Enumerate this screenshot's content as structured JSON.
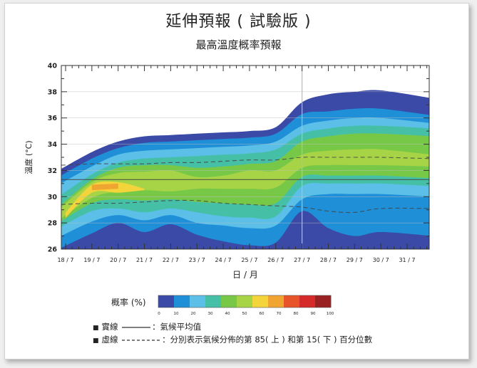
{
  "page": {
    "title": "延伸預報 ( 試驗版 )",
    "subtitle": "最高溫度概率預報"
  },
  "chart_data": {
    "type": "area",
    "title": "最高溫度概率預報",
    "xlabel": "日 / 月",
    "ylabel": "溫度 (°C)",
    "ylim": [
      26,
      40
    ],
    "yticks": [
      26,
      28,
      30,
      32,
      34,
      36,
      38,
      40
    ],
    "x": [
      "18/7",
      "19/7",
      "20/7",
      "21/7",
      "22/7",
      "23/7",
      "24/7",
      "25/7",
      "26/7",
      "27/7",
      "28/7",
      "29/7",
      "30/7",
      "31/7"
    ],
    "forecast_start": "27/7",
    "climatology": {
      "mean": [
        31.3,
        31.3,
        31.3,
        31.3,
        31.3,
        31.3,
        31.3,
        31.3,
        31.3,
        31.3,
        31.3,
        31.3,
        31.3,
        31.3
      ],
      "p85": [
        32.4,
        32.5,
        32.5,
        32.5,
        32.6,
        32.6,
        32.7,
        32.8,
        32.8,
        33.0,
        33.0,
        33.0,
        33.0,
        32.9
      ],
      "p15": [
        29.4,
        29.5,
        29.5,
        29.6,
        29.7,
        29.7,
        29.5,
        29.4,
        29.3,
        29.2,
        28.9,
        28.8,
        29.1,
        29.1
      ]
    },
    "probability_bands": [
      {
        "level": 0,
        "upper": [
          32.0,
          33.4,
          34.2,
          34.6,
          34.7,
          34.8,
          34.9,
          35.0,
          35.3,
          37.2,
          37.8,
          38.0,
          38.1,
          37.5
        ],
        "lower": [
          25.6,
          25.8,
          25.9,
          25.8,
          25.6,
          25.5,
          25.5,
          25.7,
          25.6,
          25.9,
          26.0,
          26.0,
          26.0,
          26.0
        ]
      },
      {
        "level": 10,
        "upper": [
          31.5,
          32.9,
          33.7,
          34.1,
          34.2,
          34.3,
          34.4,
          34.5,
          34.8,
          36.3,
          36.5,
          36.7,
          36.7,
          36.2
        ],
        "lower": [
          26.0,
          27.2,
          28.0,
          27.3,
          27.9,
          27.1,
          26.6,
          26.3,
          26.5,
          28.9,
          27.6,
          27.0,
          27.3,
          27.0
        ]
      },
      {
        "level": 20,
        "upper": [
          30.9,
          32.3,
          33.2,
          33.5,
          33.6,
          33.7,
          33.8,
          33.9,
          34.2,
          35.4,
          35.8,
          36.0,
          36.0,
          35.6
        ],
        "lower": [
          26.9,
          28.1,
          28.6,
          28.2,
          28.6,
          28.0,
          27.8,
          27.6,
          27.8,
          29.8,
          30.2,
          30.2,
          30.2,
          30.0
        ]
      },
      {
        "level": 30,
        "upper": [
          30.0,
          31.7,
          32.6,
          32.9,
          33.0,
          33.1,
          33.2,
          33.3,
          33.6,
          34.8,
          35.2,
          35.4,
          35.4,
          35.2
        ],
        "lower": [
          27.6,
          28.9,
          29.1,
          28.8,
          29.1,
          28.8,
          28.5,
          28.4,
          28.5,
          30.8,
          31.0,
          31.0,
          31.0,
          30.8
        ]
      },
      {
        "level": 40,
        "upper": [
          29.2,
          31.3,
          32.2,
          32.4,
          32.4,
          32.2,
          32.3,
          32.5,
          32.7,
          34.2,
          34.6,
          34.8,
          34.8,
          34.6
        ],
        "lower": [
          28.0,
          29.5,
          29.8,
          29.7,
          29.8,
          29.6,
          29.5,
          29.4,
          29.5,
          31.5,
          31.6,
          31.6,
          31.6,
          31.4
        ]
      },
      {
        "level": 50,
        "upper": [
          29.0,
          31.1,
          31.8,
          31.9,
          32.0,
          31.5,
          31.6,
          32.0,
          32.0,
          33.2,
          33.5,
          33.6,
          33.6,
          33.2
        ],
        "lower": [
          28.2,
          29.9,
          30.4,
          30.5,
          30.4,
          30.6,
          30.6,
          30.6,
          30.7,
          32.2,
          32.4,
          32.4,
          32.4,
          32.3
        ]
      },
      {
        "level": 60,
        "upper": [
          28.8,
          30.9,
          31.1,
          30.6
        ],
        "lower": [
          28.4,
          30.3,
          30.3,
          30.5
        ],
        "x": [
          "18/7",
          "19/7",
          "20/7",
          "21/7"
        ]
      },
      {
        "level": 70,
        "upper": [
          30.9,
          31.0
        ],
        "lower": [
          30.5,
          30.6
        ],
        "x": [
          "19/7",
          "20/7"
        ]
      }
    ],
    "colorbar": {
      "label": "概率 (%)",
      "ticks": [
        0,
        10,
        20,
        30,
        40,
        50,
        60,
        70,
        80,
        90,
        100
      ],
      "colors": [
        "#3a4aa6",
        "#1f8fd8",
        "#5bbfe8",
        "#45c0a6",
        "#78c847",
        "#a7d446",
        "#f3d43a",
        "#f0a431",
        "#e8542a",
        "#d52a2a",
        "#9a2121"
      ]
    },
    "grid": true
  },
  "notes": {
    "solid_line": "實線",
    "solid_desc": "：氣候平均值",
    "dashed_line": "虛線",
    "dashed_desc": "：分別表示氣候分佈的第 85( 上 ) 和第 15( 下 ) 百分位數"
  }
}
